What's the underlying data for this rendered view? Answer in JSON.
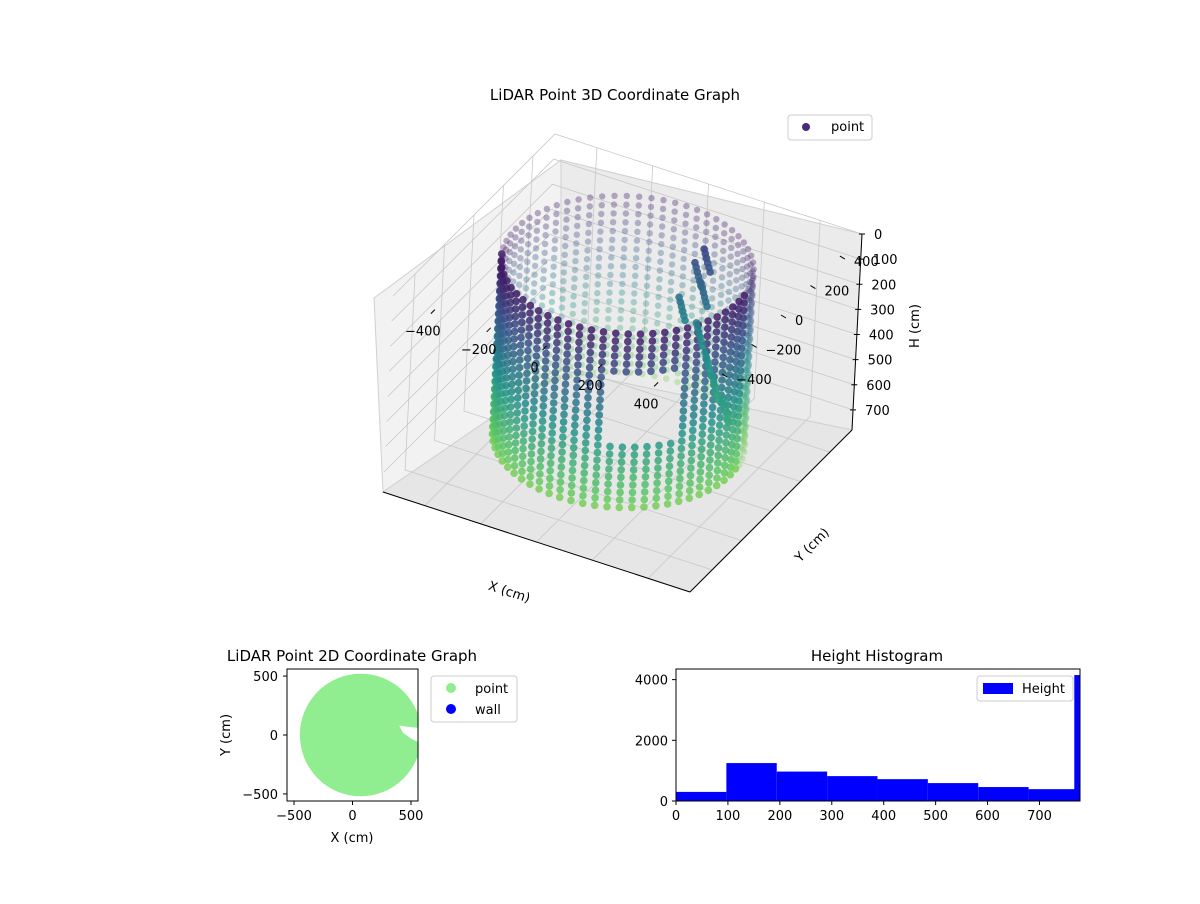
{
  "chart_data": [
    {
      "type": "scatter3d",
      "title": "LiDAR Point 3D Coordinate Graph",
      "xlabel": "X (cm)",
      "ylabel": "Y (cm)",
      "zlabel": "H (cm)",
      "x_ticks": [
        -400,
        -200,
        0,
        200,
        400
      ],
      "y_ticks": [
        -400,
        -200,
        0,
        200,
        400
      ],
      "z_ticks": [
        0,
        100,
        200,
        300,
        400,
        500,
        600,
        700
      ],
      "xlim": [
        -550,
        550
      ],
      "ylim": [
        -550,
        550
      ],
      "zlim": [
        0,
        780
      ],
      "z_inverted": true,
      "legend": [
        {
          "label": "point",
          "color": "#472c7a"
        }
      ],
      "legend_position": "upper-right",
      "colormap": "viridis",
      "grid": true,
      "wall_radius": 400,
      "wall_height": 700
    },
    {
      "type": "scatter",
      "title": "LiDAR Point 2D Coordinate Graph",
      "xlabel": "X (cm)",
      "ylabel": "Y (cm)",
      "x_ticks": [
        -500,
        0,
        500
      ],
      "y_ticks": [
        500,
        0,
        -500
      ],
      "xlim": [
        -560,
        560
      ],
      "ylim": [
        -560,
        560
      ],
      "series": [
        {
          "name": "point",
          "color": "#90ee90",
          "shape": "filled disk of radius ~520 cm centred near (70, 0)"
        },
        {
          "name": "wall",
          "color": "#0000ff"
        }
      ],
      "legend_position": "outside-right"
    },
    {
      "type": "bar",
      "title": "Height Histogram",
      "x_ticks": [
        0,
        100,
        200,
        300,
        400,
        500,
        600,
        700
      ],
      "y_ticks": [
        0,
        2000,
        4000
      ],
      "xlim": [
        0,
        778
      ],
      "ylim": [
        0,
        4350
      ],
      "bin_edges": [
        0,
        97,
        194,
        291,
        388,
        485,
        582,
        679,
        776
      ],
      "values": [
        300,
        1250,
        970,
        820,
        720,
        590,
        460,
        390
      ],
      "extra_bar": {
        "x_start": 767,
        "x_end": 778,
        "value": 4150
      },
      "series": [
        {
          "name": "Height",
          "color": "#0000ff"
        }
      ],
      "legend_position": "upper-right"
    }
  ]
}
